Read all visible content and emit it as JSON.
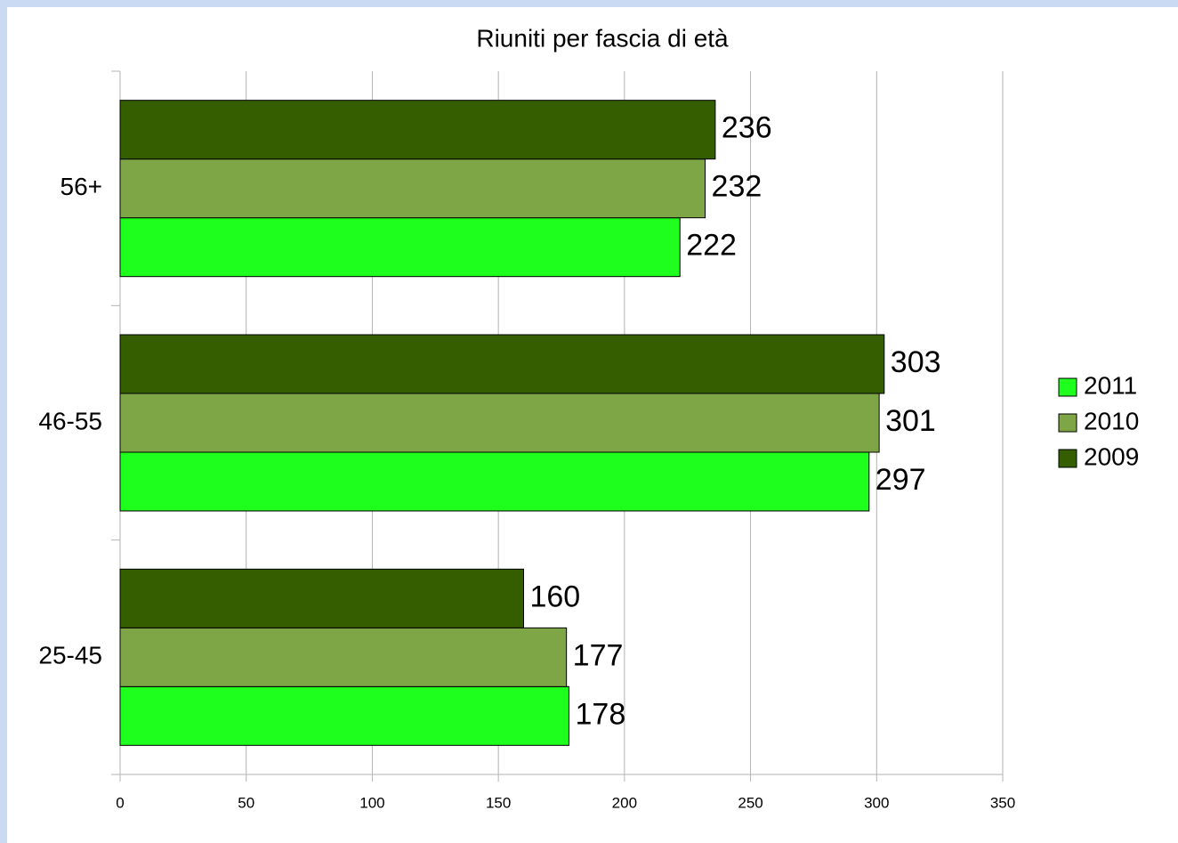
{
  "chart_data": {
    "type": "hbar",
    "title": "Riuniti per fascia di età",
    "categories": [
      "25-45",
      "46-55",
      "56+"
    ],
    "series": [
      {
        "name": "2011",
        "color": "#1eff1e",
        "values": [
          178,
          297,
          222
        ]
      },
      {
        "name": "2010",
        "color": "#7ea646",
        "values": [
          177,
          301,
          232
        ]
      },
      {
        "name": "2009",
        "color": "#355e00",
        "values": [
          160,
          303,
          236
        ]
      }
    ],
    "xlim": [
      0,
      350
    ],
    "xticks": [
      0,
      50,
      100,
      150,
      200,
      250,
      300,
      350
    ],
    "grid": true,
    "legend": "right"
  }
}
